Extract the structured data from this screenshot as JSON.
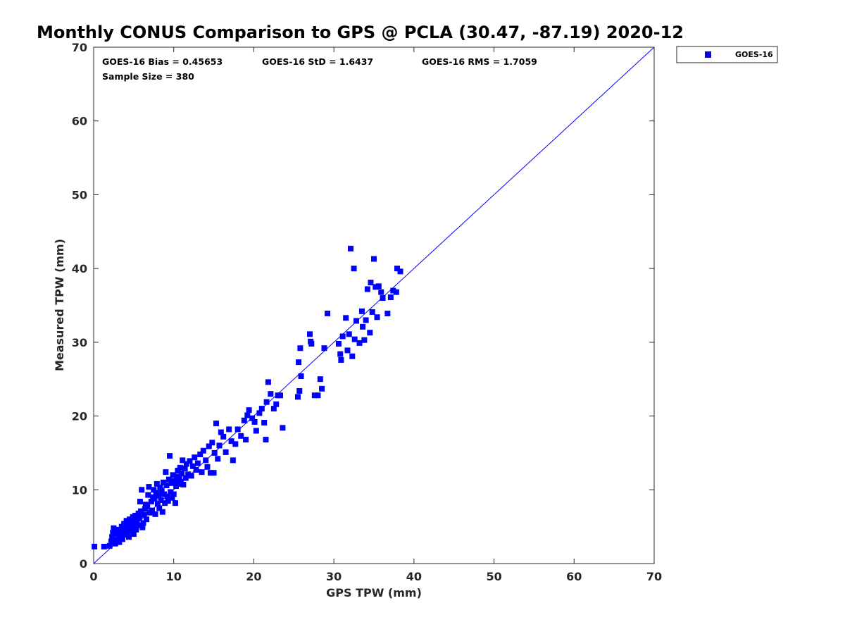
{
  "chart_data": {
    "type": "scatter",
    "title": "Monthly CONUS Comparison to GPS @ PCLA (30.47, -87.19) 2020-12",
    "xlabel": "GPS TPW (mm)",
    "ylabel": "Measured TPW (mm)",
    "xlim": [
      0,
      70
    ],
    "ylim": [
      0,
      70
    ],
    "xticks": [
      0,
      10,
      20,
      30,
      40,
      50,
      60,
      70
    ],
    "yticks": [
      0,
      10,
      20,
      30,
      40,
      50,
      60,
      70
    ],
    "grid": false,
    "legend_position": "outside-top-right",
    "legend": [
      "GOES-16"
    ],
    "annotations": {
      "bias": "GOES-16 Bias = 0.45653",
      "std": "GOES-16 StD = 1.6437",
      "rms": "GOES-16 RMS = 1.7059",
      "sample": "Sample Size = 380"
    },
    "reference_line": {
      "label": "1:1",
      "from": [
        0,
        0
      ],
      "to": [
        70,
        70
      ]
    },
    "series": [
      {
        "name": "GOES-16",
        "color": "#0000ff",
        "marker": "square",
        "points": [
          [
            0.1,
            2.3
          ],
          [
            1.3,
            2.3
          ],
          [
            2.0,
            2.4
          ],
          [
            2.2,
            3.0
          ],
          [
            2.3,
            3.6
          ],
          [
            2.4,
            4.2
          ],
          [
            2.5,
            4.8
          ],
          [
            2.7,
            2.7
          ],
          [
            2.8,
            3.2
          ],
          [
            2.9,
            4.0
          ],
          [
            3.0,
            4.6
          ],
          [
            3.1,
            3.5
          ],
          [
            3.2,
            2.9
          ],
          [
            3.3,
            4.3
          ],
          [
            3.4,
            3.8
          ],
          [
            3.5,
            5.0
          ],
          [
            3.6,
            3.3
          ],
          [
            3.7,
            4.5
          ],
          [
            3.8,
            5.4
          ],
          [
            3.9,
            3.9
          ],
          [
            4.0,
            4.8
          ],
          [
            4.1,
            5.8
          ],
          [
            4.2,
            4.1
          ],
          [
            4.3,
            5.1
          ],
          [
            4.4,
            3.6
          ],
          [
            4.5,
            6.0
          ],
          [
            4.6,
            4.4
          ],
          [
            4.7,
            5.3
          ],
          [
            4.8,
            4.9
          ],
          [
            4.9,
            6.3
          ],
          [
            5.0,
            4.0
          ],
          [
            5.1,
            5.6
          ],
          [
            5.2,
            6.5
          ],
          [
            5.3,
            4.6
          ],
          [
            5.4,
            5.9
          ],
          [
            5.5,
            5.2
          ],
          [
            5.6,
            6.8
          ],
          [
            5.7,
            6.2
          ],
          [
            5.8,
            8.4
          ],
          [
            5.9,
            7.1
          ],
          [
            6.0,
            10.0
          ],
          [
            6.1,
            4.9
          ],
          [
            6.2,
            5.5
          ],
          [
            6.3,
            6.6
          ],
          [
            6.4,
            7.4
          ],
          [
            6.5,
            8.0
          ],
          [
            6.6,
            6.0
          ],
          [
            6.7,
            7.7
          ],
          [
            6.8,
            9.3
          ],
          [
            6.9,
            10.4
          ],
          [
            7.0,
            6.9
          ],
          [
            7.2,
            8.4
          ],
          [
            7.3,
            7.2
          ],
          [
            7.4,
            9.0
          ],
          [
            7.5,
            10.0
          ],
          [
            7.6,
            8.8
          ],
          [
            7.7,
            6.7
          ],
          [
            7.8,
            9.6
          ],
          [
            7.9,
            10.8
          ],
          [
            8.0,
            8.1
          ],
          [
            8.1,
            9.2
          ],
          [
            8.2,
            7.5
          ],
          [
            8.3,
            10.3
          ],
          [
            8.4,
            8.6
          ],
          [
            8.5,
            9.9
          ],
          [
            8.6,
            7.0
          ],
          [
            8.7,
            11.0
          ],
          [
            8.8,
            9.4
          ],
          [
            8.9,
            8.2
          ],
          [
            9.0,
            12.4
          ],
          [
            9.1,
            10.6
          ],
          [
            9.2,
            9.1
          ],
          [
            9.3,
            8.5
          ],
          [
            9.4,
            11.4
          ],
          [
            9.5,
            14.6
          ],
          [
            9.6,
            9.7
          ],
          [
            9.7,
            10.9
          ],
          [
            9.8,
            8.9
          ],
          [
            9.9,
            12.0
          ],
          [
            10.0,
            9.4
          ],
          [
            10.1,
            11.2
          ],
          [
            10.2,
            8.2
          ],
          [
            10.3,
            10.5
          ],
          [
            10.4,
            11.8
          ],
          [
            10.5,
            12.6
          ],
          [
            10.6,
            10.8
          ],
          [
            10.7,
            11.5
          ],
          [
            10.8,
            13.0
          ],
          [
            10.9,
            11.1
          ],
          [
            11.0,
            12.2
          ],
          [
            11.1,
            14.0
          ],
          [
            11.2,
            10.7
          ],
          [
            11.4,
            12.9
          ],
          [
            11.5,
            11.6
          ],
          [
            11.6,
            13.5
          ],
          [
            11.8,
            12.1
          ],
          [
            12.0,
            13.9
          ],
          [
            12.2,
            11.9
          ],
          [
            12.4,
            13.2
          ],
          [
            12.6,
            14.4
          ],
          [
            12.8,
            12.7
          ],
          [
            13.0,
            13.6
          ],
          [
            13.3,
            14.8
          ],
          [
            13.5,
            12.4
          ],
          [
            13.7,
            15.3
          ],
          [
            14.0,
            14.0
          ],
          [
            14.2,
            13.1
          ],
          [
            14.4,
            15.9
          ],
          [
            14.6,
            12.3
          ],
          [
            14.8,
            16.4
          ],
          [
            15.0,
            12.3
          ],
          [
            15.1,
            15.0
          ],
          [
            15.3,
            19.0
          ],
          [
            15.5,
            14.2
          ],
          [
            15.7,
            16.0
          ],
          [
            15.9,
            17.8
          ],
          [
            16.2,
            17.2
          ],
          [
            16.5,
            15.1
          ],
          [
            16.9,
            18.2
          ],
          [
            17.2,
            16.6
          ],
          [
            17.4,
            14.0
          ],
          [
            17.7,
            16.2
          ],
          [
            18.0,
            18.2
          ],
          [
            18.4,
            17.3
          ],
          [
            18.8,
            19.4
          ],
          [
            19.0,
            16.8
          ],
          [
            19.2,
            20.1
          ],
          [
            19.4,
            20.8
          ],
          [
            19.8,
            19.7
          ],
          [
            20.1,
            19.2
          ],
          [
            20.3,
            18.0
          ],
          [
            20.7,
            20.4
          ],
          [
            21.0,
            21.0
          ],
          [
            21.3,
            19.1
          ],
          [
            21.5,
            16.8
          ],
          [
            21.6,
            21.9
          ],
          [
            21.8,
            24.6
          ],
          [
            22.1,
            23.0
          ],
          [
            22.5,
            21.0
          ],
          [
            22.8,
            21.6
          ],
          [
            23.0,
            22.8
          ],
          [
            23.3,
            22.8
          ],
          [
            23.6,
            18.4
          ],
          [
            25.5,
            22.6
          ],
          [
            25.6,
            27.3
          ],
          [
            25.7,
            23.4
          ],
          [
            25.8,
            29.2
          ],
          [
            25.9,
            25.4
          ],
          [
            27.0,
            31.1
          ],
          [
            27.1,
            30.1
          ],
          [
            27.2,
            29.8
          ],
          [
            27.6,
            22.8
          ],
          [
            28.0,
            22.8
          ],
          [
            28.3,
            25.0
          ],
          [
            28.5,
            23.7
          ],
          [
            28.8,
            29.2
          ],
          [
            29.2,
            33.9
          ],
          [
            30.6,
            29.8
          ],
          [
            30.8,
            28.4
          ],
          [
            30.9,
            27.6
          ],
          [
            31.1,
            30.8
          ],
          [
            31.5,
            33.3
          ],
          [
            31.7,
            28.9
          ],
          [
            31.9,
            31.1
          ],
          [
            32.1,
            42.7
          ],
          [
            32.3,
            28.1
          ],
          [
            32.5,
            40.0
          ],
          [
            32.6,
            30.4
          ],
          [
            32.8,
            32.9
          ],
          [
            33.2,
            29.9
          ],
          [
            33.5,
            34.2
          ],
          [
            33.6,
            32.1
          ],
          [
            33.8,
            30.3
          ],
          [
            34.0,
            33.0
          ],
          [
            34.2,
            37.2
          ],
          [
            34.5,
            31.3
          ],
          [
            34.6,
            38.1
          ],
          [
            34.8,
            34.1
          ],
          [
            35.0,
            41.3
          ],
          [
            35.2,
            37.5
          ],
          [
            35.4,
            33.4
          ],
          [
            35.6,
            37.6
          ],
          [
            35.9,
            36.8
          ],
          [
            36.1,
            36.0
          ],
          [
            36.7,
            33.9
          ],
          [
            37.1,
            36.1
          ],
          [
            37.4,
            37.0
          ],
          [
            37.8,
            36.8
          ],
          [
            37.9,
            40.0
          ],
          [
            38.3,
            39.6
          ]
        ]
      }
    ]
  }
}
